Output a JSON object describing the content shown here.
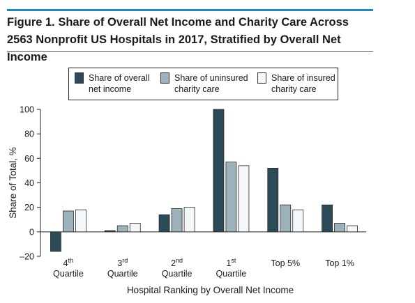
{
  "figure": {
    "title_line1": "Figure 1. Share of Overall Net Income and Charity Care Across",
    "title_line2": "2563 Nonprofit US Hospitals in 2017, Stratified by Overall Net Income"
  },
  "colors": {
    "accent_rule": "#1f87c5",
    "net_income": "#2c4a57",
    "uninsured": "#9db1bb",
    "insured": "#f4f7f9"
  },
  "chart_data": {
    "type": "bar",
    "title": "Figure 1. Share of Overall Net Income and Charity Care Across 2563 Nonprofit US Hospitals in 2017, Stratified by Overall Net Income",
    "xlabel": "Hospital Ranking by Overall Net Income",
    "ylabel": "Share of Total, %",
    "ylim": [
      -20,
      100
    ],
    "yticks": [
      "100",
      "80",
      "60",
      "40",
      "20",
      "0",
      "–20"
    ],
    "categories": [
      {
        "num": "4",
        "sup": "th",
        "line2": "Quartile"
      },
      {
        "num": "3",
        "sup": "rd",
        "line2": "Quartile"
      },
      {
        "num": "2",
        "sup": "nd",
        "line2": "Quartile"
      },
      {
        "num": "1",
        "sup": "st",
        "line2": "Quartile"
      },
      {
        "num": "Top 5%",
        "sup": "",
        "line2": ""
      },
      {
        "num": "Top 1%",
        "sup": "",
        "line2": ""
      }
    ],
    "legend_position": "top-center",
    "grid": false,
    "series": [
      {
        "name": "Share of overall\nnet income",
        "color": "#2c4a57",
        "values": [
          -16,
          1,
          14,
          100,
          52,
          22
        ]
      },
      {
        "name": "Share of uninsured\ncharity care",
        "color": "#9db1bb",
        "values": [
          17,
          5,
          19,
          57,
          22,
          7
        ]
      },
      {
        "name": "Share of insured\ncharity care",
        "color": "#f4f7f9",
        "values": [
          18,
          7,
          20,
          54,
          18,
          5
        ]
      }
    ]
  }
}
